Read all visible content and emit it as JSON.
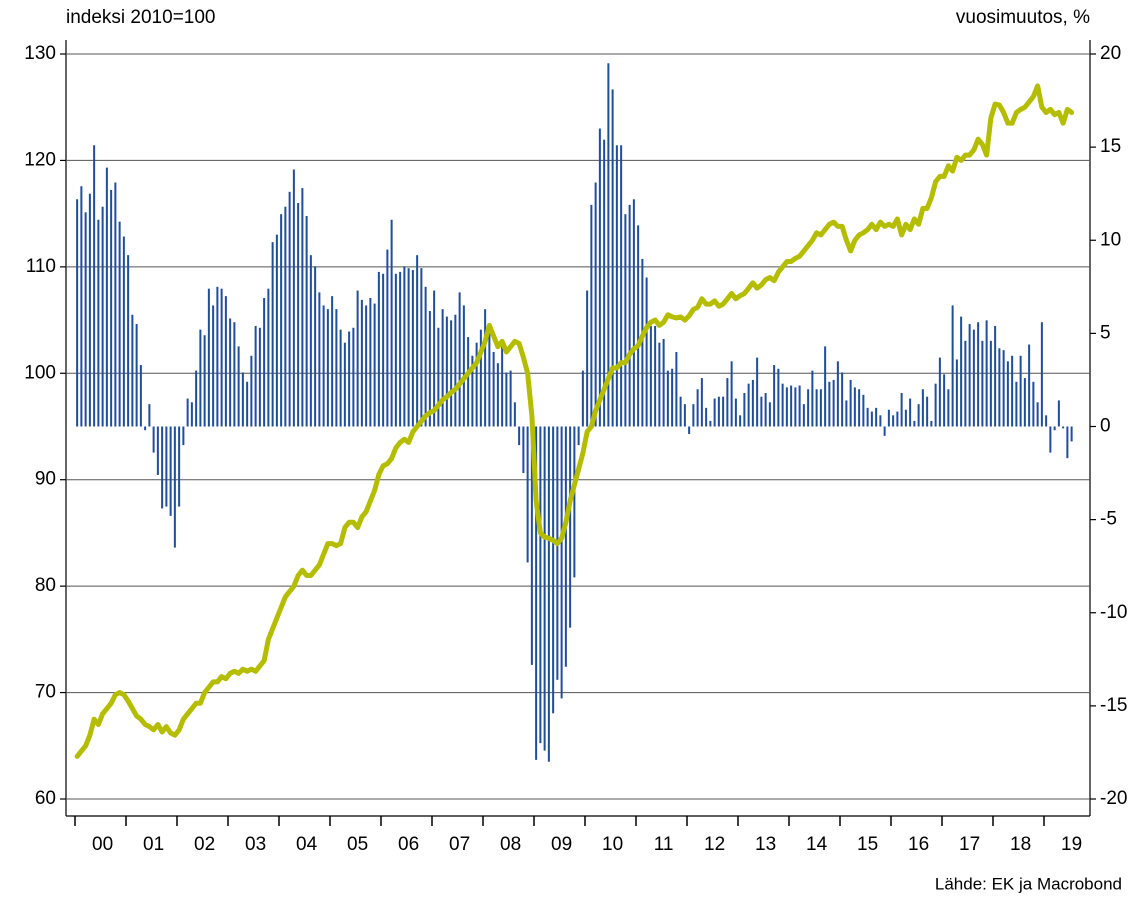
{
  "chart_data": {
    "type": "combo",
    "y_label": "indeksi 2010=100",
    "y2_label": "vuosimuutos, %",
    "source": "Lähde: EK ja Macrobond",
    "ylim": [
      60,
      130
    ],
    "yticks": [
      60,
      70,
      80,
      90,
      100,
      110,
      120,
      130
    ],
    "y2lim": [
      -20,
      20
    ],
    "y2ticks": [
      -20,
      -15,
      -10,
      -5,
      0,
      5,
      10,
      15,
      20
    ],
    "grid": true,
    "categories": [
      null,
      null,
      null,
      null,
      null,
      null,
      "00",
      null,
      null,
      null,
      null,
      null,
      null,
      null,
      null,
      null,
      null,
      null,
      "01",
      null,
      null,
      null,
      null,
      null,
      null,
      null,
      null,
      null,
      null,
      null,
      "02",
      null,
      null,
      null,
      null,
      null,
      null,
      null,
      null,
      null,
      null,
      null,
      "03",
      null,
      null,
      null,
      null,
      null,
      null,
      null,
      null,
      null,
      null,
      null,
      "04",
      null,
      null,
      null,
      null,
      null,
      null,
      null,
      null,
      null,
      null,
      null,
      "05",
      null,
      null,
      null,
      null,
      null,
      null,
      null,
      null,
      null,
      null,
      null,
      "06",
      null,
      null,
      null,
      null,
      null,
      null,
      null,
      null,
      null,
      null,
      null,
      "07",
      null,
      null,
      null,
      null,
      null,
      null,
      null,
      null,
      null,
      null,
      null,
      "08",
      null,
      null,
      null,
      null,
      null,
      null,
      null,
      null,
      null,
      null,
      null,
      "09",
      null,
      null,
      null,
      null,
      null,
      null,
      null,
      null,
      null,
      null,
      null,
      "10",
      null,
      null,
      null,
      null,
      null,
      null,
      null,
      null,
      null,
      null,
      null,
      "11",
      null,
      null,
      null,
      null,
      null,
      null,
      null,
      null,
      null,
      null,
      null,
      "12",
      null,
      null,
      null,
      null,
      null,
      null,
      null,
      null,
      null,
      null,
      null,
      "13",
      null,
      null,
      null,
      null,
      null,
      null,
      null,
      null,
      null,
      null,
      null,
      "14",
      null,
      null,
      null,
      null,
      null,
      null,
      null,
      null,
      null,
      null,
      null,
      "15",
      null,
      null,
      null,
      null,
      null,
      null,
      null,
      null,
      null,
      null,
      null,
      "16",
      null,
      null,
      null,
      null,
      null,
      null,
      null,
      null,
      null,
      null,
      null,
      "17",
      null,
      null,
      null,
      null,
      null,
      null,
      null,
      null,
      null,
      null,
      null,
      "18",
      null,
      null,
      null,
      null,
      null,
      null,
      null,
      null,
      null,
      null,
      null,
      "19"
    ],
    "series": [
      {
        "type": "bar",
        "axis": "y2",
        "color": "#1f4e9c",
        "values": [
          12.2,
          12.9,
          11.5,
          12.5,
          15.1,
          11.1,
          11.8,
          13.9,
          12.7,
          13.1,
          11.0,
          10.2,
          9.2,
          6.0,
          5.5,
          3.3,
          -0.2,
          1.2,
          -1.4,
          -2.6,
          -4.4,
          -4.3,
          -4.8,
          -6.5,
          -4.3,
          -1.0,
          1.5,
          1.3,
          3.0,
          5.2,
          4.9,
          7.4,
          6.5,
          7.5,
          7.4,
          7.0,
          5.8,
          5.6,
          4.3,
          2.9,
          2.4,
          3.8,
          5.4,
          5.3,
          6.9,
          7.4,
          9.9,
          10.3,
          11.4,
          11.8,
          12.6,
          13.8,
          12.0,
          12.8,
          11.3,
          9.2,
          8.6,
          7.2,
          6.5,
          6.3,
          7.0,
          6.3,
          5.2,
          4.5,
          5.1,
          5.3,
          7.3,
          6.8,
          6.5,
          6.9,
          6.6,
          8.3,
          8.2,
          9.5,
          11.1,
          8.2,
          8.3,
          8.6,
          8.5,
          8.4,
          9.2,
          8.5,
          7.5,
          6.2,
          7.3,
          5.3,
          6.3,
          5.9,
          5.7,
          6.0,
          7.2,
          6.5,
          4.8,
          3.8,
          4.5,
          5.2,
          6.3,
          5.4,
          4.0,
          3.4,
          4.3,
          2.9,
          3.0,
          1.3,
          -1.0,
          -2.5,
          -7.3,
          -12.8,
          -17.9,
          -17.0,
          -17.4,
          -18.0,
          -15.4,
          -13.6,
          -14.6,
          -12.9,
          -10.8,
          -8.1,
          -1.0,
          3.0,
          7.3,
          11.9,
          13.1,
          16.0,
          15.4,
          19.5,
          18.1,
          15.1,
          15.1,
          11.4,
          11.9,
          12.2,
          10.8,
          9.0,
          8.0,
          5.4,
          5.4,
          4.5,
          4.7,
          3.0,
          3.1,
          4.0,
          1.6,
          1.2,
          -0.4,
          1.2,
          2.0,
          2.6,
          1.0,
          0.3,
          1.5,
          1.6,
          1.6,
          2.6,
          3.5,
          1.5,
          0.6,
          1.8,
          2.3,
          2.5,
          3.7,
          1.6,
          1.8,
          1.3,
          3.3,
          3.1,
          2.3,
          2.1,
          2.2,
          2.1,
          2.2,
          1.2,
          2.0,
          3.0,
          2.0,
          2.0,
          4.3,
          2.4,
          2.5,
          3.5,
          2.9,
          1.4,
          2.5,
          2.1,
          2.0,
          1.7,
          1.0,
          0.8,
          1.0,
          0.6,
          -0.5,
          0.9,
          0.6,
          0.8,
          1.8,
          0.9,
          1.5,
          0.3,
          1.2,
          2.0,
          1.6,
          0.3,
          2.3,
          3.7,
          2.8,
          2.0,
          6.5,
          3.6,
          5.9,
          4.6,
          5.5,
          5.2,
          5.6,
          4.6,
          5.7,
          4.6,
          5.4,
          4.2,
          4.1,
          3.5,
          3.8,
          2.4,
          3.8,
          2.6,
          4.4,
          2.4,
          1.3,
          5.6,
          0.6,
          -1.4,
          -0.2,
          1.4,
          -0.1,
          -1.7,
          -0.8
        ]
      },
      {
        "type": "line",
        "axis": "y",
        "color": "#b5bd00",
        "values": [
          64.0,
          64.5,
          65.0,
          66.0,
          67.5,
          67.0,
          68.0,
          68.5,
          69.0,
          69.8,
          70.0,
          69.8,
          69.2,
          68.5,
          67.8,
          67.5,
          67.0,
          66.8,
          66.5,
          67.0,
          66.3,
          66.8,
          66.2,
          66.0,
          66.5,
          67.5,
          68,
          68.5,
          69,
          69,
          70,
          70.5,
          71,
          71,
          71.5,
          71.3,
          71.8,
          72,
          71.8,
          72.2,
          72.0,
          72.2,
          72.0,
          72.5,
          73.0,
          75.0,
          76.0,
          77.0,
          78,
          79,
          79.5,
          80,
          81,
          81.5,
          81,
          81,
          81.5,
          82,
          83,
          84,
          84,
          83.8,
          84,
          85.5,
          86,
          86,
          85.5,
          86.5,
          87,
          88,
          89,
          90.5,
          91.3,
          91.5,
          92,
          93,
          93.5,
          93.8,
          93.5,
          94.5,
          95,
          95.5,
          96,
          96.3,
          96.5,
          97,
          97.5,
          97.8,
          98.2,
          98.5,
          99,
          99.5,
          100,
          100.5,
          101,
          102,
          103,
          104.5,
          103.5,
          102.5,
          103,
          102,
          102.5,
          103,
          102.8,
          101.5,
          100,
          96,
          88,
          85,
          84.6,
          84.5,
          84.3,
          84.0,
          84.5,
          86.0,
          88,
          89.5,
          91,
          92.5,
          94.5,
          95,
          96.5,
          97.5,
          98.5,
          99.5,
          100.5,
          100.5,
          101,
          101,
          101.8,
          102.3,
          102.6,
          103.5,
          104.3,
          104.8,
          105,
          104.5,
          104.8,
          105.5,
          105.3,
          105.2,
          105.3,
          105.0,
          105.4,
          106,
          106.2,
          107,
          106.5,
          106.5,
          106.8,
          106.3,
          106.5,
          107,
          107.5,
          107.0,
          107.3,
          107.5,
          108.0,
          108.5,
          108,
          108.3,
          108.8,
          109.0,
          108.7,
          109.5,
          110,
          110.5,
          110.5,
          110.8,
          111,
          111.5,
          112,
          112.5,
          113.2,
          113.0,
          113.5,
          114,
          114.2,
          113.8,
          113.8,
          112.5,
          111.5,
          112.5,
          113.0,
          113.2,
          113.5,
          114.0,
          113.5,
          114.2,
          113.8,
          114.0,
          113.8,
          114.5,
          113.0,
          114.0,
          113.5,
          114.5,
          114.0,
          115.5,
          115.5,
          116.5,
          118.0,
          118.5,
          118.5,
          119.5,
          119,
          120.3,
          120.0,
          120.5,
          120.5,
          121,
          122.0,
          121.5,
          120.5,
          124.0,
          125.3,
          125.2,
          124.5,
          123.5,
          123.5,
          124.5,
          124.8,
          125,
          125.5,
          126.0,
          127.0,
          125.0,
          124.5,
          124.8,
          124.3,
          124.5,
          123.5,
          124.8,
          124.5
        ]
      }
    ]
  }
}
